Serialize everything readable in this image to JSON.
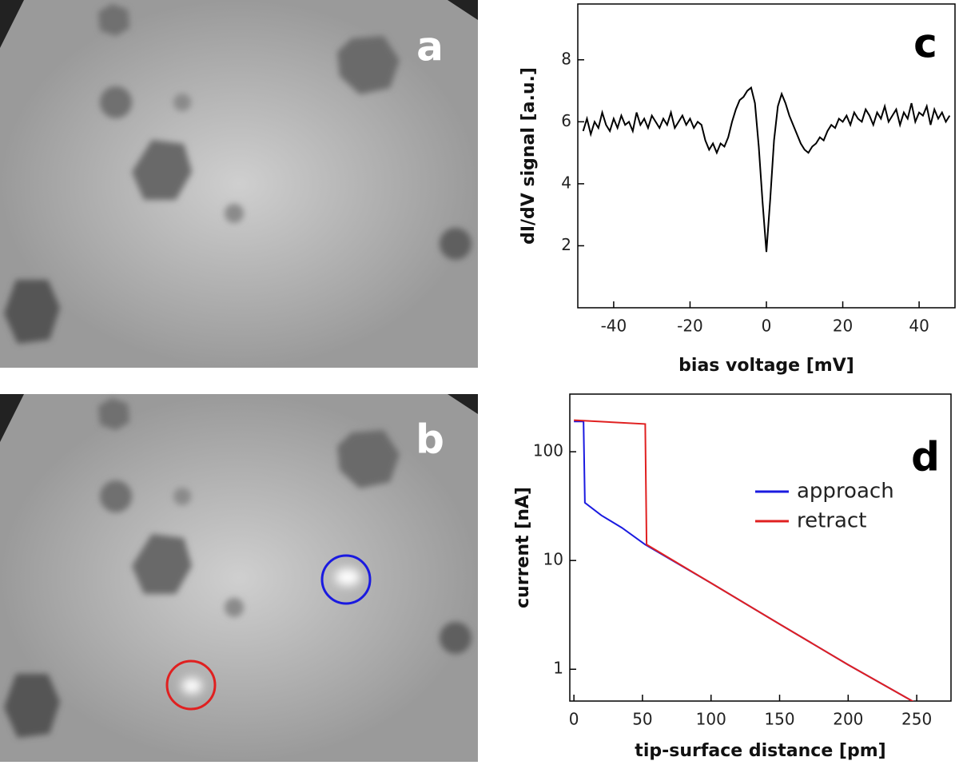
{
  "panel_labels": [
    "a",
    "b"
  ],
  "chart_data": [
    {
      "type": "line",
      "label": "c",
      "xlabel": "bias voltage [mV]",
      "ylabel": "dI/dV signal [a.u.]",
      "xlim": [
        -49.4,
        49.4
      ],
      "ylim": [
        0,
        9.8
      ],
      "xticks": [
        -40,
        -20,
        0,
        20,
        40
      ],
      "yticks": [
        2,
        4,
        6,
        8
      ],
      "log_y": false,
      "x": [
        -48,
        -47,
        -46,
        -45,
        -44,
        -43,
        -42,
        -41,
        -40,
        -39,
        -38,
        -37,
        -36,
        -35,
        -34,
        -33,
        -32,
        -31,
        -30,
        -29,
        -28,
        -27,
        -26,
        -25,
        -24,
        -23,
        -22,
        -21,
        -20,
        -19,
        -18,
        -17,
        -16,
        -15,
        -14,
        -13,
        -12,
        -11,
        -10,
        -9,
        -8,
        -7,
        -6,
        -5,
        -4,
        -3,
        -2,
        -1,
        0,
        1,
        2,
        3,
        4,
        5,
        6,
        7,
        8,
        9,
        10,
        11,
        12,
        13,
        14,
        15,
        16,
        17,
        18,
        19,
        20,
        21,
        22,
        23,
        24,
        25,
        26,
        27,
        28,
        29,
        30,
        31,
        32,
        33,
        34,
        35,
        36,
        37,
        38,
        39,
        40,
        41,
        42,
        43,
        44,
        45,
        46,
        47,
        48
      ],
      "series": [
        {
          "color": "#000000",
          "values": [
            5.7,
            6.1,
            5.6,
            6.0,
            5.8,
            6.3,
            5.9,
            5.7,
            6.1,
            5.8,
            6.2,
            5.9,
            6.0,
            5.7,
            6.3,
            5.9,
            6.1,
            5.8,
            6.2,
            6.0,
            5.8,
            6.1,
            5.9,
            6.3,
            5.8,
            6.0,
            6.2,
            5.9,
            6.1,
            5.8,
            6.0,
            5.9,
            5.4,
            5.1,
            5.3,
            5.0,
            5.3,
            5.2,
            5.5,
            6.0,
            6.4,
            6.7,
            6.8,
            7.0,
            7.1,
            6.6,
            5.2,
            3.4,
            1.8,
            3.5,
            5.4,
            6.5,
            6.9,
            6.6,
            6.2,
            5.9,
            5.6,
            5.3,
            5.1,
            5.0,
            5.2,
            5.3,
            5.5,
            5.4,
            5.7,
            5.9,
            5.8,
            6.1,
            6.0,
            6.2,
            5.9,
            6.3,
            6.1,
            6.0,
            6.4,
            6.2,
            5.9,
            6.3,
            6.1,
            6.5,
            6.0,
            6.2,
            6.4,
            5.9,
            6.3,
            6.1,
            6.6,
            6.0,
            6.3,
            6.2,
            6.5,
            5.9,
            6.4,
            6.1,
            6.3,
            6.0,
            6.2
          ]
        }
      ]
    },
    {
      "type": "line",
      "label": "d",
      "xlabel": "tip-surface distance [pm]",
      "ylabel": "current [nA]",
      "xlim": [
        -3,
        275
      ],
      "ylim": [
        0.51,
        339
      ],
      "xticks": [
        0,
        50,
        100,
        150,
        200,
        250
      ],
      "yticks": [
        1,
        10,
        100
      ],
      "log_y": true,
      "series": [
        {
          "name": "approach",
          "color": "#1a1ae0",
          "x": [
            0,
            7,
            8,
            20,
            35,
            52,
            100,
            150,
            200,
            248
          ],
          "values": [
            190,
            190,
            34,
            26,
            20,
            14,
            6.2,
            2.6,
            1.1,
            0.5
          ]
        },
        {
          "name": "retract",
          "color": "#e02020",
          "x": [
            0,
            52,
            53,
            100,
            150,
            200,
            248
          ],
          "values": [
            195,
            180,
            14,
            6.2,
            2.6,
            1.1,
            0.5
          ]
        }
      ]
    }
  ]
}
